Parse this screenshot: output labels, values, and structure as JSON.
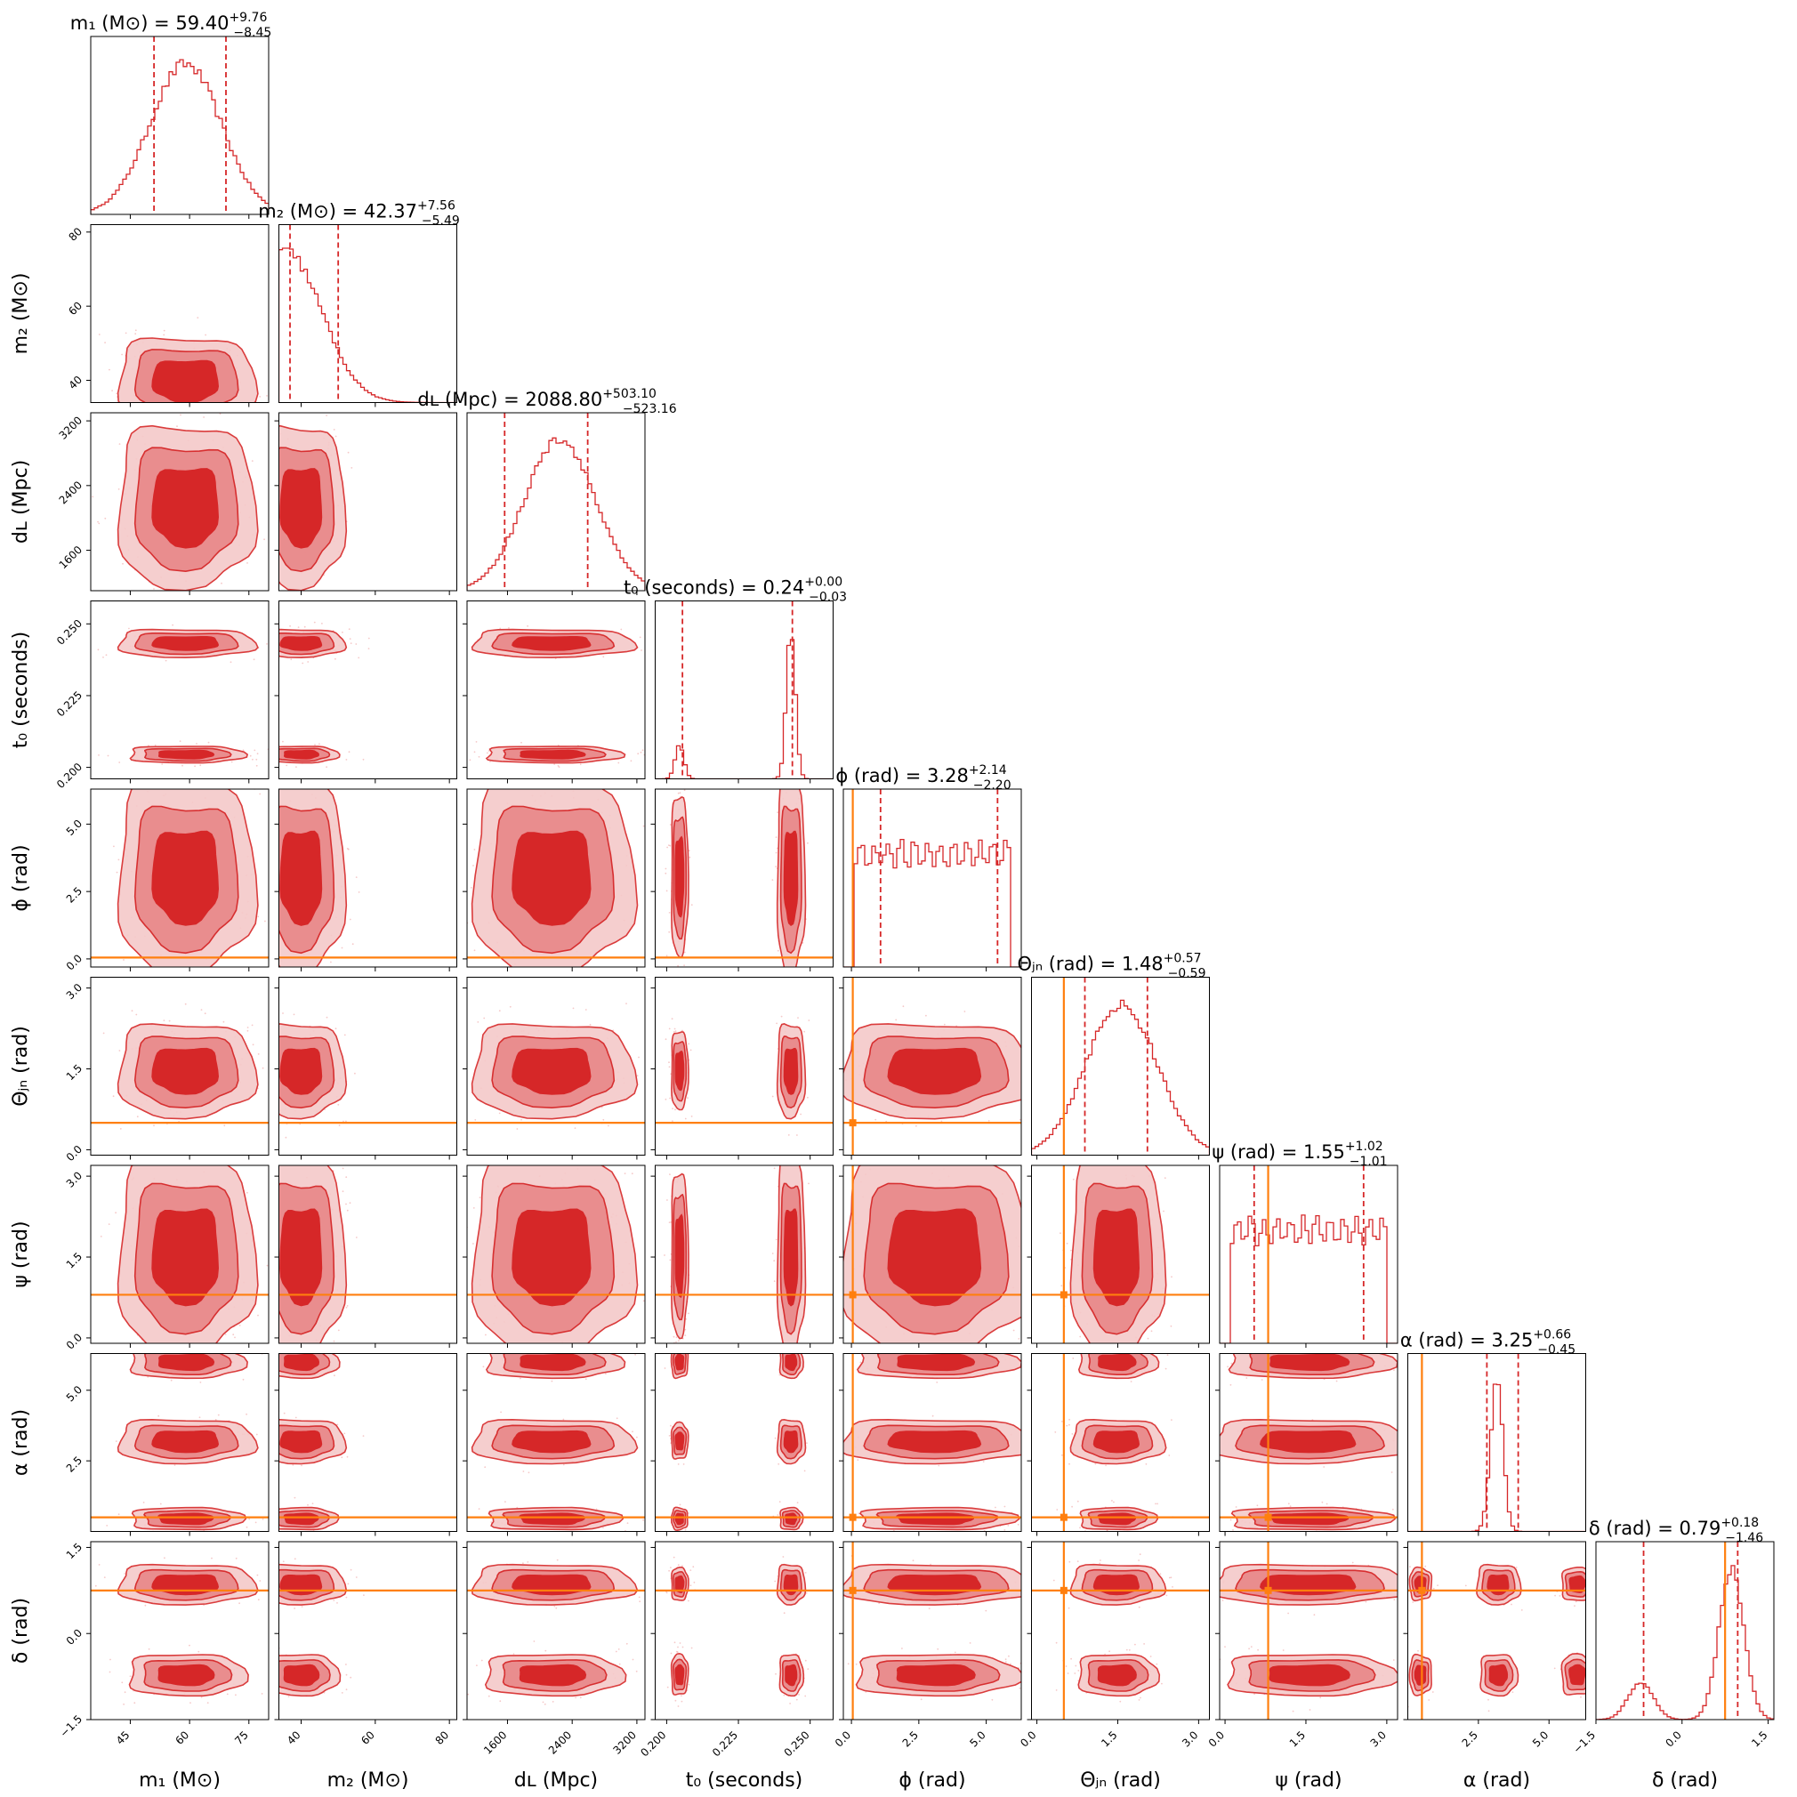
{
  "chart_data": {
    "type": "corner",
    "colors": {
      "posterior": "#d62728",
      "contour_inner": "#d62728",
      "contour_mid": "#e98a8b",
      "contour_outer": "#f5c9c9",
      "truth": "#ff7f0e",
      "quantile": "#d62728"
    },
    "parameters": [
      {
        "key": "m1",
        "label": "m₁ (M⊙)",
        "title": "m₁ (M⊙) = 59.40",
        "median": 59.4,
        "plus": "+9.76",
        "minus": "−8.45",
        "range": [
          35,
          80
        ],
        "ticks": [
          45,
          60,
          75
        ],
        "tick_labels": [
          "45",
          "60",
          "75"
        ],
        "truth": null
      },
      {
        "key": "m2",
        "label": "m₂ (M⊙)",
        "title": "m₂ (M⊙) = 42.37",
        "median": 42.37,
        "plus": "+7.56",
        "minus": "−5.49",
        "range": [
          34,
          82
        ],
        "ticks": [
          40,
          60,
          80
        ],
        "tick_labels": [
          "40",
          "60",
          "80"
        ],
        "truth": null
      },
      {
        "key": "dL",
        "label": "dʟ (Mpc)",
        "title": "dʟ (Mpc) = 2088.80",
        "median": 2088.8,
        "plus": "+503.10",
        "minus": "−523.16",
        "range": [
          1100,
          3300
        ],
        "ticks": [
          1600,
          2400,
          3200
        ],
        "tick_labels": [
          "1600",
          "2400",
          "3200"
        ],
        "truth": null
      },
      {
        "key": "t0",
        "label": "t₀ (seconds)",
        "title": "t₀ (seconds) = 0.24",
        "median": 0.24,
        "plus": "+0.00",
        "minus": "−0.03",
        "range": [
          0.196,
          0.258
        ],
        "ticks": [
          0.2,
          0.225,
          0.25
        ],
        "tick_labels": [
          "0.200",
          "0.225",
          "0.250"
        ],
        "truth": null
      },
      {
        "key": "phi",
        "label": "ϕ (rad)",
        "title": "ϕ (rad) = 3.28",
        "median": 3.28,
        "plus": "+2.14",
        "minus": "−2.20",
        "range": [
          -0.3,
          6.3
        ],
        "ticks": [
          0.0,
          2.5,
          5.0
        ],
        "tick_labels": [
          "0.0",
          "2.5",
          "5.0"
        ],
        "truth": 0.05
      },
      {
        "key": "theta_jn",
        "label": "Θⱼₙ (rad)",
        "title": "Θⱼₙ (rad) = 1.48",
        "median": 1.48,
        "plus": "+0.57",
        "minus": "−0.59",
        "range": [
          -0.1,
          3.2
        ],
        "ticks": [
          0.0,
          1.5,
          3.0
        ],
        "tick_labels": [
          "0.0",
          "1.5",
          "3.0"
        ],
        "truth": 0.5
      },
      {
        "key": "psi",
        "label": "ψ (rad)",
        "title": "ψ (rad) = 1.55",
        "median": 1.55,
        "plus": "+1.02",
        "minus": "−1.01",
        "range": [
          -0.1,
          3.2
        ],
        "ticks": [
          0.0,
          1.5,
          3.0
        ],
        "tick_labels": [
          "0.0",
          "1.5",
          "3.0"
        ],
        "truth": 0.8
      },
      {
        "key": "alpha",
        "label": "α (rad)",
        "title": "α (rad) = 3.25",
        "median": 3.25,
        "plus": "+0.66",
        "minus": "−0.45",
        "range": [
          0.0,
          6.3
        ],
        "ticks": [
          2.5,
          5.0
        ],
        "tick_labels": [
          "2.5",
          "5.0"
        ],
        "truth": 0.5
      },
      {
        "key": "delta",
        "label": "δ (rad)",
        "title": "δ (rad) = 0.79",
        "median": 0.79,
        "plus": "+0.18",
        "minus": "−1.46",
        "range": [
          -1.5,
          1.6
        ],
        "ticks": [
          -1.5,
          0.0,
          1.5
        ],
        "tick_labels": [
          "−1.5",
          "0.0",
          "1.5"
        ],
        "truth": 0.75
      }
    ],
    "quantiles": {
      "m1": [
        51.0,
        69.2
      ],
      "m2": [
        37.0,
        50.0
      ],
      "dL": [
        1565,
        2592
      ],
      "t0": [
        0.2055,
        0.2438
      ],
      "phi": [
        1.08,
        5.42
      ],
      "theta_jn": [
        0.89,
        2.05
      ],
      "psi": [
        0.54,
        2.57
      ],
      "alpha": [
        2.8,
        3.91
      ],
      "delta": [
        -0.67,
        0.97
      ]
    },
    "histogram_modes": {
      "m1": [
        [
          59,
          1.0
        ]
      ],
      "m2": [
        [
          36,
          1.0
        ]
      ],
      "dL": [
        [
          2250,
          1.0
        ]
      ],
      "t0": [
        [
          0.2045,
          0.22
        ],
        [
          0.2433,
          1.0
        ]
      ],
      "phi": "uniform",
      "theta_jn": [
        [
          1.57,
          1.0
        ]
      ],
      "psi": "uniform",
      "alpha": [
        [
          3.15,
          1.0
        ]
      ],
      "delta": [
        [
          -0.72,
          0.25
        ],
        [
          0.86,
          1.0
        ]
      ]
    }
  }
}
